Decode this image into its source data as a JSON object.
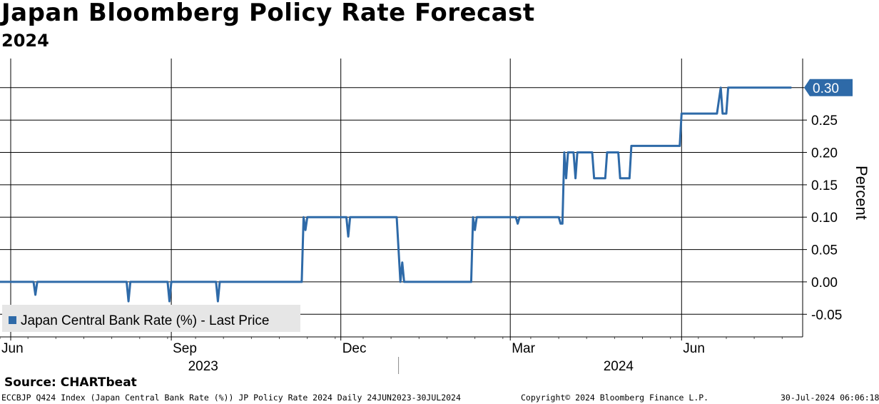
{
  "header": {
    "title": "Japan Bloomberg Policy Rate Forecast",
    "subtitle": "2024"
  },
  "footer": {
    "source": "Source: CHARTbeat",
    "ticker": "ECCBJP Q424 Index (Japan Central Bank Rate (%)) JP Policy Rate 2024  Daily 24JUN2023-30JUL2024",
    "copyright": "Copyright© 2024 Bloomberg Finance L.P.",
    "timestamp": "30-Jul-2024 06:06:18"
  },
  "colors": {
    "line": "#2e6aa8",
    "gridline": "#000000",
    "legend_bg": "#e6e6e6"
  },
  "chart_data": {
    "type": "line",
    "ylabel": "Percent",
    "ylim": [
      -0.085,
      0.345
    ],
    "yticks": [
      0.3,
      0.25,
      0.2,
      0.15,
      0.1,
      0.05,
      0.0,
      -0.05
    ],
    "ytick_labels": [
      "0.30",
      "0.25",
      "0.20",
      "0.15",
      "0.10",
      "0.05",
      "0.00",
      "-0.05"
    ],
    "xlim": [
      "2023-06-01",
      "2024-08-05"
    ],
    "month_ticks": [
      {
        "date": "2023-06-01",
        "label": "Jun"
      },
      {
        "date": "2023-09-01",
        "label": "Sep"
      },
      {
        "date": "2023-12-01",
        "label": "Dec"
      },
      {
        "date": "2024-03-01",
        "label": "Mar"
      },
      {
        "date": "2024-06-01",
        "label": "Jun"
      }
    ],
    "year_labels": [
      {
        "date": "2023-09-10",
        "label": "2023"
      },
      {
        "date": "2024-04-20",
        "label": "2024"
      }
    ],
    "year_divider": "2024-01-01",
    "legend": "Japan Central Bank Rate (%) - Last Price",
    "last_value_label": "0.30",
    "series": [
      {
        "name": "Japan Central Bank Rate (%) - Last Price",
        "points": [
          [
            "2023-05-26",
            0.0
          ],
          [
            "2023-06-19",
            0.0
          ],
          [
            "2023-06-20",
            -0.02
          ],
          [
            "2023-06-21",
            0.0
          ],
          [
            "2023-08-08",
            0.0
          ],
          [
            "2023-08-09",
            -0.03
          ],
          [
            "2023-08-10",
            0.0
          ],
          [
            "2023-08-30",
            0.0
          ],
          [
            "2023-08-31",
            -0.03
          ],
          [
            "2023-09-01",
            0.0
          ],
          [
            "2023-09-25",
            0.0
          ],
          [
            "2023-09-26",
            -0.03
          ],
          [
            "2023-09-27",
            0.0
          ],
          [
            "2023-11-10",
            0.0
          ],
          [
            "2023-11-11",
            0.1
          ],
          [
            "2023-11-12",
            0.08
          ],
          [
            "2023-11-13",
            0.1
          ],
          [
            "2023-12-04",
            0.1
          ],
          [
            "2023-12-05",
            0.07
          ],
          [
            "2023-12-06",
            0.1
          ],
          [
            "2023-12-31",
            0.1
          ],
          [
            "2024-01-02",
            0.0
          ],
          [
            "2024-01-03",
            0.03
          ],
          [
            "2024-01-04",
            0.0
          ],
          [
            "2024-02-09",
            0.0
          ],
          [
            "2024-02-10",
            0.1
          ],
          [
            "2024-02-11",
            0.08
          ],
          [
            "2024-02-12",
            0.1
          ],
          [
            "2024-03-04",
            0.1
          ],
          [
            "2024-03-05",
            0.09
          ],
          [
            "2024-03-06",
            0.1
          ],
          [
            "2024-03-27",
            0.1
          ],
          [
            "2024-03-28",
            0.09
          ],
          [
            "2024-03-29",
            0.09
          ],
          [
            "2024-03-30",
            0.2
          ],
          [
            "2024-03-31",
            0.16
          ],
          [
            "2024-04-01",
            0.2
          ],
          [
            "2024-04-04",
            0.2
          ],
          [
            "2024-04-05",
            0.16
          ],
          [
            "2024-04-06",
            0.2
          ],
          [
            "2024-04-14",
            0.2
          ],
          [
            "2024-04-15",
            0.16
          ],
          [
            "2024-04-21",
            0.16
          ],
          [
            "2024-04-22",
            0.2
          ],
          [
            "2024-04-28",
            0.2
          ],
          [
            "2024-04-29",
            0.16
          ],
          [
            "2024-05-04",
            0.16
          ],
          [
            "2024-05-05",
            0.21
          ],
          [
            "2024-05-31",
            0.21
          ],
          [
            "2024-06-01",
            0.26
          ],
          [
            "2024-06-20",
            0.26
          ],
          [
            "2024-06-22",
            0.3
          ],
          [
            "2024-06-23",
            0.26
          ],
          [
            "2024-06-25",
            0.26
          ],
          [
            "2024-06-26",
            0.3
          ],
          [
            "2024-07-30",
            0.3
          ]
        ]
      }
    ]
  }
}
